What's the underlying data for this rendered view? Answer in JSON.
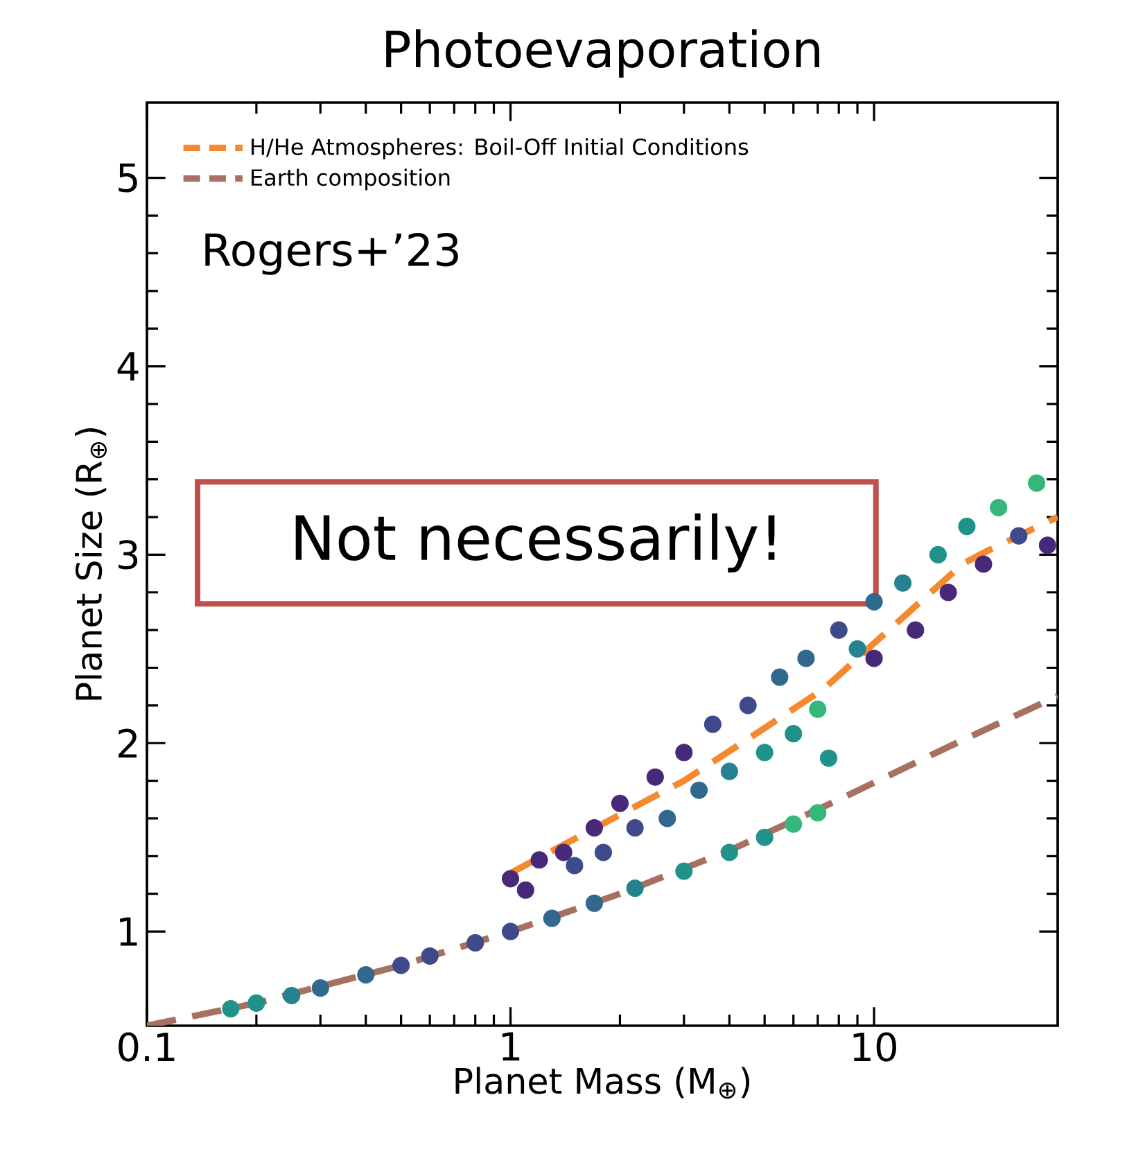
{
  "chart_data": {
    "type": "scatter",
    "title": "Photoevaporation",
    "xlabel": "Planet Mass (M$_{⊕}$)",
    "ylabel": "Planet Size (R$_{⊕}$)",
    "log": "x",
    "xlim": [
      0.1,
      32
    ],
    "xticks": [
      0.1,
      1,
      10
    ],
    "ylim": [
      0.5,
      5.4
    ],
    "yticks": [
      1,
      2,
      3,
      4,
      5
    ],
    "legend": "top left",
    "grid": false,
    "annotations": [
      "Rogers+’23",
      "Not necessarily!"
    ],
    "series": [
      {
        "type": "scatter",
        "marker": "circle",
        "x": [
          0.17,
          0.2,
          0.25,
          0.3,
          0.4,
          0.5,
          0.6,
          0.8,
          1.0,
          1.3,
          1.7,
          2.2,
          3,
          4,
          5,
          6,
          7,
          1.0,
          1.1,
          1.2,
          1.4,
          1.5,
          1.7,
          1.8,
          2,
          2.2,
          2.5,
          2.7,
          3,
          3.3,
          3.6,
          4,
          4.5,
          5,
          5.5,
          6,
          6.5,
          7,
          7.5,
          8,
          9,
          10,
          10,
          12,
          13,
          15,
          16,
          18,
          20,
          22,
          25,
          28,
          30
        ],
        "values": [
          0.59,
          0.62,
          0.66,
          0.7,
          0.77,
          0.82,
          0.87,
          0.94,
          1.0,
          1.07,
          1.15,
          1.23,
          1.32,
          1.42,
          1.5,
          1.57,
          1.63,
          1.28,
          1.22,
          1.38,
          1.42,
          1.35,
          1.55,
          1.42,
          1.68,
          1.55,
          1.82,
          1.6,
          1.95,
          1.75,
          2.1,
          1.85,
          2.2,
          1.95,
          2.35,
          2.05,
          2.45,
          2.18,
          1.92,
          2.6,
          2.5,
          2.75,
          2.45,
          2.85,
          2.6,
          3.0,
          2.8,
          3.15,
          2.95,
          3.25,
          3.1,
          3.38,
          3.05
        ],
        "colors": [
          "#21918c",
          "#21918c",
          "#26828e",
          "#31688e",
          "#31688e",
          "#3e4a89",
          "#3e4a89",
          "#3e4a89",
          "#3e4a89",
          "#31688e",
          "#31688e",
          "#26828e",
          "#21918c",
          "#21918c",
          "#21918c",
          "#35b779",
          "#35b779",
          "#482878",
          "#482878",
          "#482878",
          "#482878",
          "#3e4a89",
          "#482878",
          "#3e4a89",
          "#482878",
          "#3e4a89",
          "#482878",
          "#31688e",
          "#482878",
          "#31688e",
          "#3e4a89",
          "#26828e",
          "#3e4a89",
          "#21918c",
          "#31688e",
          "#21918c",
          "#31688e",
          "#35b779",
          "#21918c",
          "#3e4a89",
          "#26828e",
          "#31688e",
          "#482878",
          "#26828e",
          "#482878",
          "#21918c",
          "#482878",
          "#21918c",
          "#482878",
          "#35b779",
          "#3e4a89",
          "#35b779",
          "#482878"
        ]
      },
      {
        "type": "line",
        "name": "H/He Atmospheres: Boil-Off Initial Conditions",
        "color": "#f5892f",
        "line_style": "dashed",
        "marker": "none",
        "x": [
          1,
          2,
          3,
          5,
          7.3,
          10,
          17.5,
          20,
          32
        ],
        "values": [
          1.31,
          1.62,
          1.8,
          2.08,
          2.29,
          2.53,
          2.95,
          3.01,
          3.2
        ]
      },
      {
        "type": "line",
        "name": "Earth composition",
        "color": "#a87060",
        "line_style": "dashed",
        "marker": "none",
        "x": [
          0.1,
          0.2,
          0.5,
          1,
          2,
          4,
          8,
          16,
          32
        ],
        "values": [
          0.5,
          0.62,
          0.82,
          1.0,
          1.2,
          1.43,
          1.7,
          1.98,
          2.25
        ]
      }
    ]
  }
}
